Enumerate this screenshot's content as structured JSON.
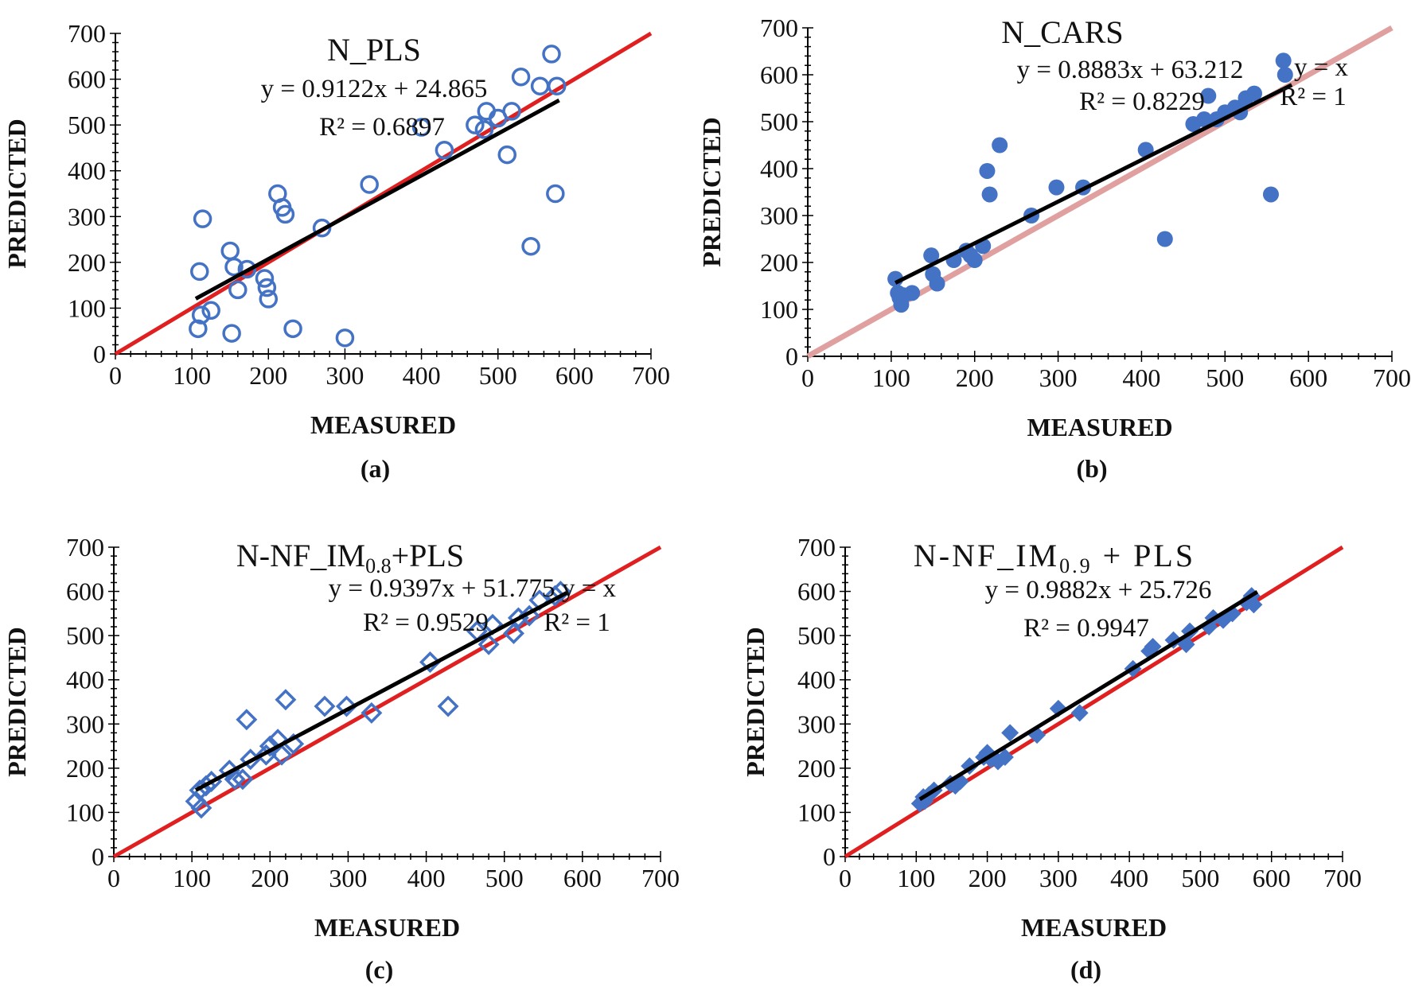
{
  "figure": {
    "colors": {
      "marker": "#4472C4",
      "fit_line": "#000000",
      "identity_line": "#E02020",
      "identity_line_faded": "#E0A0A0"
    }
  },
  "chart_data": [
    {
      "type": "scatter",
      "panel_label": "(a)",
      "title": "N_PLS",
      "xlabel": "MEASURED",
      "ylabel": "PREDICTED",
      "xlim": [
        0,
        700
      ],
      "ylim": [
        0,
        700
      ],
      "ticks": [
        "0",
        "100",
        "200",
        "300",
        "400",
        "500",
        "600",
        "700"
      ],
      "marker": "open-circle",
      "x": [
        108,
        110,
        112,
        114,
        125,
        150,
        152,
        155,
        160,
        172,
        195,
        198,
        200,
        212,
        218,
        222,
        232,
        270,
        300,
        332,
        400,
        430,
        470,
        482,
        485,
        500,
        512,
        518,
        530,
        543,
        555,
        570,
        575,
        577
      ],
      "y": [
        55,
        180,
        85,
        295,
        95,
        225,
        45,
        190,
        140,
        185,
        165,
        145,
        120,
        350,
        320,
        305,
        55,
        275,
        35,
        370,
        495,
        445,
        500,
        490,
        530,
        515,
        435,
        530,
        605,
        235,
        585,
        655,
        350,
        585
      ],
      "fit_line": {
        "x": [
          105,
          580
        ],
        "y": [
          120.6,
          553.9
        ]
      },
      "identity_line": {
        "x": [
          0,
          700
        ],
        "y": [
          0,
          700
        ]
      },
      "equation": "y = 0.9122x + 24.865",
      "r2": "R² = 0.6897"
    },
    {
      "type": "scatter",
      "panel_label": "(b)",
      "title": "N_CARS",
      "xlabel": "MEASURED",
      "ylabel": "PREDICTED",
      "xlim": [
        0,
        700
      ],
      "ylim": [
        0,
        700
      ],
      "ticks": [
        "0",
        "100",
        "200",
        "300",
        "400",
        "500",
        "600",
        "700"
      ],
      "marker": "filled-circle",
      "x": [
        105,
        108,
        110,
        112,
        115,
        125,
        148,
        150,
        155,
        175,
        190,
        195,
        200,
        210,
        215,
        218,
        230,
        268,
        298,
        330,
        405,
        428,
        462,
        475,
        480,
        490,
        500,
        512,
        518,
        525,
        535,
        555,
        570,
        572
      ],
      "y": [
        165,
        135,
        125,
        110,
        130,
        135,
        215,
        175,
        155,
        205,
        225,
        215,
        205,
        235,
        395,
        345,
        450,
        300,
        360,
        360,
        440,
        250,
        495,
        505,
        555,
        505,
        520,
        530,
        520,
        550,
        560,
        345,
        630,
        600
      ],
      "fit_line": {
        "x": [
          105,
          580
        ],
        "y": [
          156.5,
          578.4
        ]
      },
      "identity_line": {
        "x": [
          0,
          700
        ],
        "y": [
          0,
          700
        ]
      },
      "equation": "y = 0.8883x + 63.212",
      "r2": "R² = 0.8229",
      "identity_equation": "y = x",
      "identity_r2": "R² = 1"
    },
    {
      "type": "scatter",
      "panel_label": "(c)",
      "title": "N-NF_IM",
      "title_sub": "0.8",
      "title_suffix": "+PLS",
      "xlabel": "MEASURED",
      "ylabel": "PREDICTED",
      "xlim": [
        0,
        700
      ],
      "ylim": [
        0,
        700
      ],
      "ticks": [
        "0",
        "100",
        "200",
        "300",
        "400",
        "500",
        "600",
        "700"
      ],
      "marker": "open-diamond",
      "x": [
        105,
        110,
        112,
        118,
        125,
        148,
        155,
        165,
        170,
        175,
        195,
        200,
        210,
        215,
        220,
        230,
        270,
        298,
        330,
        405,
        428,
        465,
        480,
        485,
        512,
        518,
        532,
        545,
        565,
        572
      ],
      "y": [
        125,
        150,
        110,
        160,
        170,
        195,
        175,
        175,
        310,
        220,
        230,
        250,
        265,
        230,
        355,
        255,
        340,
        340,
        325,
        440,
        340,
        510,
        480,
        525,
        505,
        540,
        545,
        580,
        590,
        600
      ],
      "fit_line": {
        "x": [
          105,
          580
        ],
        "y": [
          150.4,
          596.8
        ]
      },
      "identity_line": {
        "x": [
          0,
          700
        ],
        "y": [
          0,
          700
        ]
      },
      "equation": "y = 0.9397x + 51.775",
      "r2": "R² = 0.9529",
      "identity_equation": "y = x",
      "identity_r2": "R² = 1"
    },
    {
      "type": "scatter",
      "panel_label": "(d)",
      "title": "N-NF_IM",
      "title_sub": "0.9",
      "title_suffix": " + PLS",
      "xlabel": "MEASURED",
      "ylabel": "PREDICTED",
      "xlim": [
        0,
        700
      ],
      "ylim": [
        0,
        700
      ],
      "ticks": [
        "0",
        "100",
        "200",
        "300",
        "400",
        "500",
        "600",
        "700"
      ],
      "marker": "filled-diamond",
      "x": [
        105,
        110,
        112,
        118,
        125,
        148,
        155,
        162,
        175,
        195,
        200,
        205,
        215,
        225,
        232,
        270,
        300,
        330,
        405,
        428,
        433,
        462,
        480,
        485,
        512,
        518,
        532,
        545,
        565,
        572,
        575
      ],
      "y": [
        120,
        135,
        125,
        140,
        150,
        165,
        160,
        170,
        205,
        225,
        235,
        220,
        215,
        225,
        280,
        275,
        335,
        325,
        425,
        465,
        475,
        490,
        480,
        510,
        520,
        540,
        535,
        550,
        575,
        590,
        570
      ],
      "fit_line": {
        "x": [
          105,
          580
        ],
        "y": [
          129.5,
          598.9
        ]
      },
      "identity_line": {
        "x": [
          0,
          700
        ],
        "y": [
          0,
          700
        ]
      },
      "equation": "y = 0.9882x + 25.726",
      "r2": "R² = 0.9947"
    }
  ]
}
